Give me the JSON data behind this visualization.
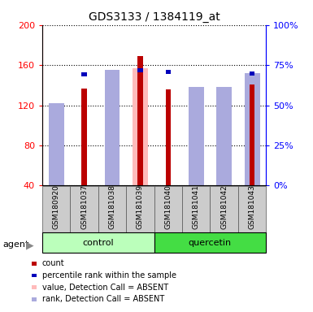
{
  "title": "GDS3133 / 1384119_at",
  "samples": [
    "GSM180920",
    "GSM181037",
    "GSM181038",
    "GSM181039",
    "GSM181040",
    "GSM181041",
    "GSM181042",
    "GSM181043"
  ],
  "groups": [
    "control",
    "control",
    "control",
    "control",
    "quercetin",
    "quercetin",
    "quercetin",
    "quercetin"
  ],
  "count_values": [
    0,
    137,
    0,
    169,
    136,
    0,
    0,
    141
  ],
  "pct_rank_vals": [
    0,
    153,
    0,
    157,
    155,
    0,
    0,
    154
  ],
  "absent_value": [
    48,
    0,
    155,
    157,
    0,
    136,
    136,
    0
  ],
  "absent_rank": [
    122,
    0,
    155,
    0,
    0,
    138,
    138,
    152
  ],
  "ylim_left": [
    40,
    200
  ],
  "ylim_right": [
    0,
    100
  ],
  "yticks_left": [
    40,
    80,
    120,
    160,
    200
  ],
  "yticks_right": [
    0,
    25,
    50,
    75,
    100
  ],
  "color_count": "#bb0000",
  "color_rank": "#0000bb",
  "color_absent_value": "#ffbbbb",
  "color_absent_rank": "#aaaadd",
  "color_control_bg_light": "#bbffbb",
  "color_quercetin_bg": "#44dd44",
  "color_sample_bg": "#cccccc",
  "figsize": [
    3.85,
    3.84
  ],
  "dpi": 100
}
